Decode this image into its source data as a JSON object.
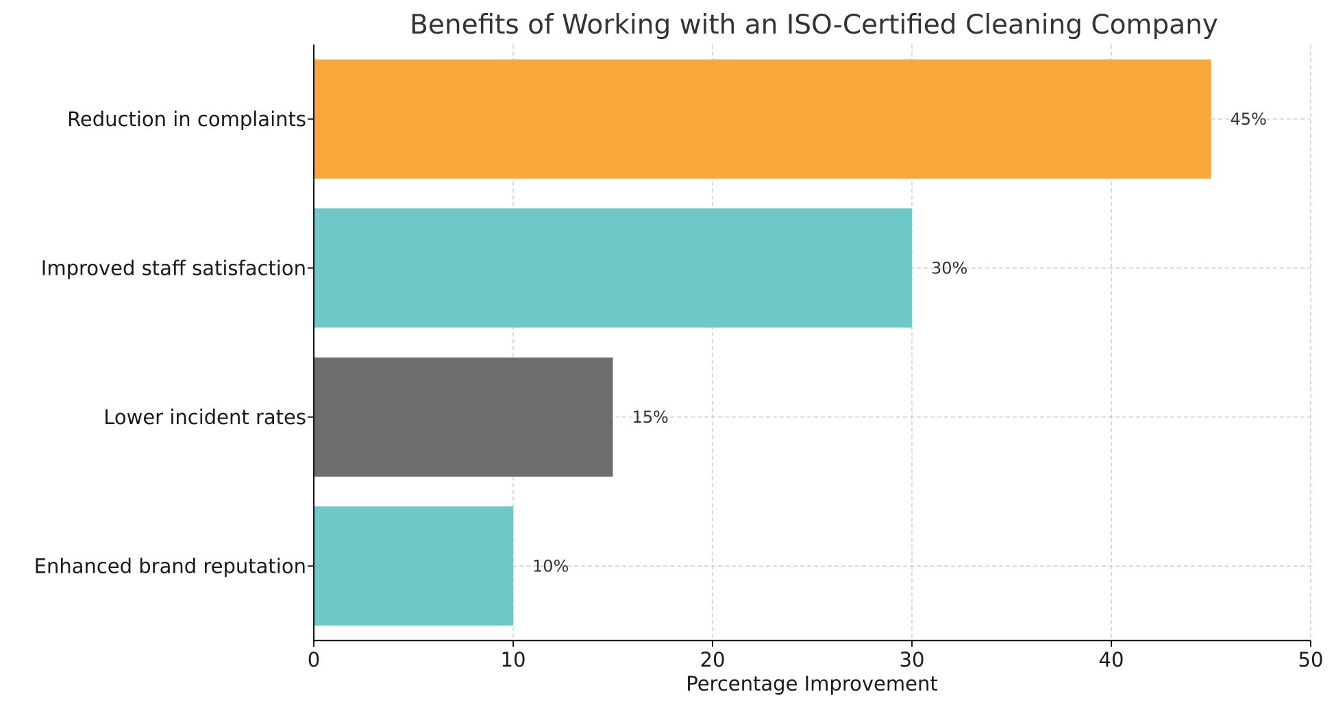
{
  "chart_data": {
    "type": "bar",
    "orientation": "horizontal",
    "title": "Benefits of Working with an ISO-Certified Cleaning Company",
    "xlabel": "Percentage Improvement",
    "ylabel": "",
    "xlim": [
      0,
      50
    ],
    "xticks": [
      0,
      10,
      20,
      30,
      40,
      50
    ],
    "grid": true,
    "categories": [
      "Reduction in complaints",
      "Improved staff satisfaction",
      "Lower incident rates",
      "Enhanced brand reputation"
    ],
    "values": [
      45,
      30,
      15,
      10
    ],
    "value_labels": [
      "45%",
      "30%",
      "15%",
      "10%"
    ],
    "colors": [
      "#F9A63B",
      "#6DC8C7",
      "#6D6D6D",
      "#6DC8C7"
    ]
  }
}
